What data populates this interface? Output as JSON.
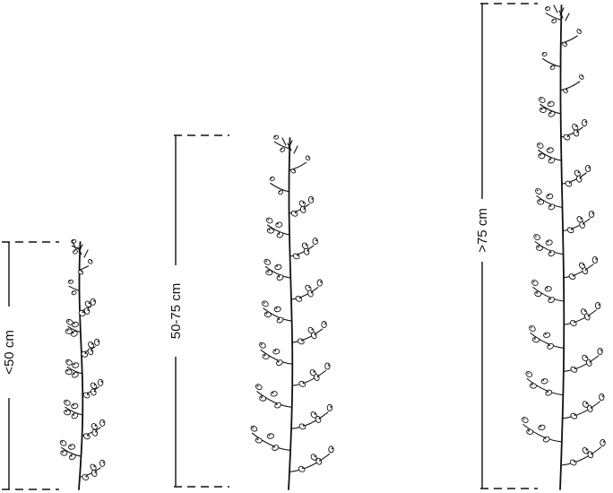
{
  "measurements": [
    {
      "id": "short",
      "label": "<50 cm"
    },
    {
      "id": "medium",
      "label": "50-75 cm"
    },
    {
      "id": "tall",
      "label": ">75 cm"
    }
  ]
}
